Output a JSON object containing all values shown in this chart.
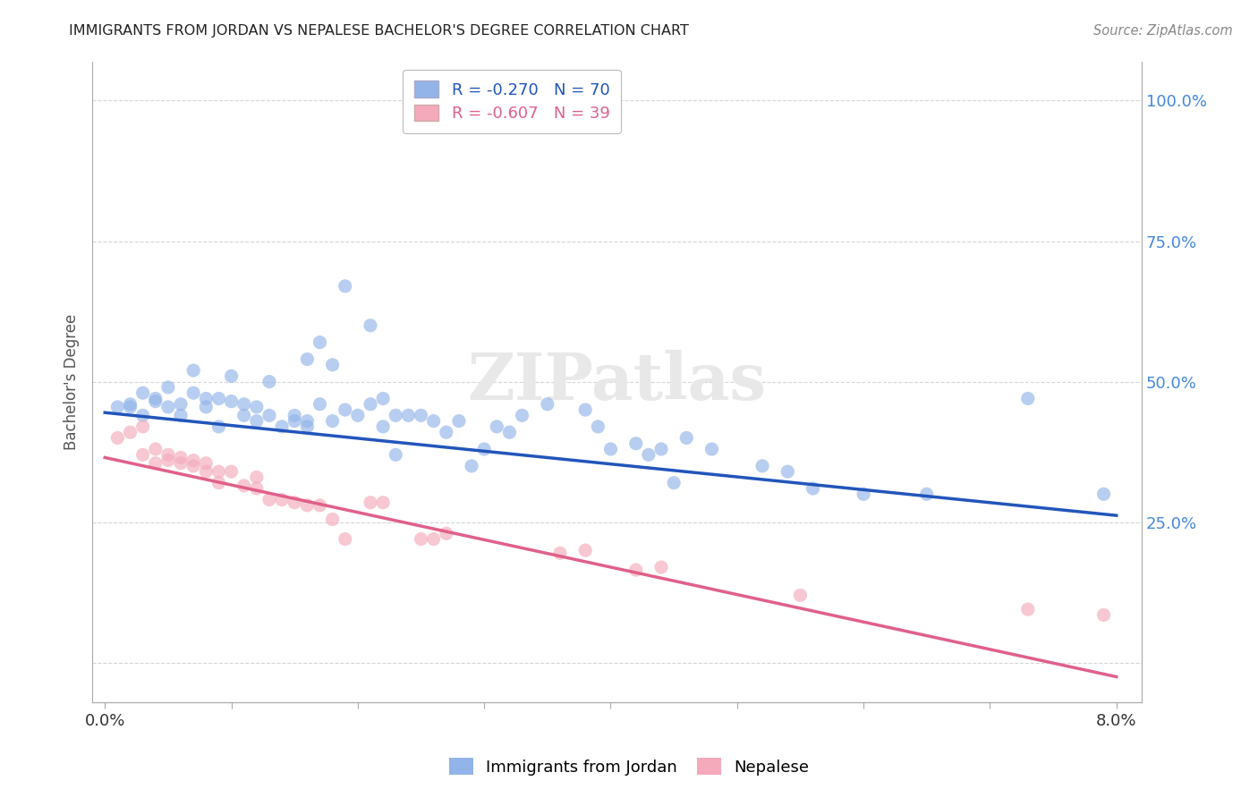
{
  "title": "IMMIGRANTS FROM JORDAN VS NEPALESE BACHELOR'S DEGREE CORRELATION CHART",
  "source": "Source: ZipAtlas.com",
  "ylabel": "Bachelor's Degree",
  "legend_blue": "R = -0.270   N = 70",
  "legend_pink": "R = -0.607   N = 39",
  "legend_label_blue": "Immigrants from Jordan",
  "legend_label_pink": "Nepalese",
  "blue_color": "#92B4E8",
  "pink_color": "#F4AABB",
  "trendline_blue": "#2255BB",
  "trendline_pink": "#E0608A",
  "blue_scatter": [
    [
      0.001,
      0.455
    ],
    [
      0.002,
      0.455
    ],
    [
      0.002,
      0.46
    ],
    [
      0.003,
      0.44
    ],
    [
      0.003,
      0.48
    ],
    [
      0.004,
      0.47
    ],
    [
      0.004,
      0.465
    ],
    [
      0.005,
      0.49
    ],
    [
      0.005,
      0.455
    ],
    [
      0.006,
      0.46
    ],
    [
      0.006,
      0.44
    ],
    [
      0.007,
      0.52
    ],
    [
      0.007,
      0.48
    ],
    [
      0.008,
      0.455
    ],
    [
      0.008,
      0.47
    ],
    [
      0.009,
      0.42
    ],
    [
      0.009,
      0.47
    ],
    [
      0.01,
      0.51
    ],
    [
      0.01,
      0.465
    ],
    [
      0.011,
      0.46
    ],
    [
      0.011,
      0.44
    ],
    [
      0.012,
      0.455
    ],
    [
      0.012,
      0.43
    ],
    [
      0.013,
      0.5
    ],
    [
      0.013,
      0.44
    ],
    [
      0.014,
      0.42
    ],
    [
      0.015,
      0.43
    ],
    [
      0.015,
      0.44
    ],
    [
      0.016,
      0.42
    ],
    [
      0.016,
      0.43
    ],
    [
      0.017,
      0.46
    ],
    [
      0.018,
      0.43
    ],
    [
      0.019,
      0.45
    ],
    [
      0.02,
      0.44
    ],
    [
      0.021,
      0.46
    ],
    [
      0.022,
      0.47
    ],
    [
      0.023,
      0.44
    ],
    [
      0.024,
      0.44
    ],
    [
      0.025,
      0.44
    ],
    [
      0.026,
      0.43
    ],
    [
      0.027,
      0.41
    ],
    [
      0.028,
      0.43
    ],
    [
      0.029,
      0.35
    ],
    [
      0.03,
      0.38
    ],
    [
      0.021,
      0.6
    ],
    [
      0.019,
      0.67
    ],
    [
      0.018,
      0.53
    ],
    [
      0.017,
      0.57
    ],
    [
      0.016,
      0.54
    ],
    [
      0.022,
      0.42
    ],
    [
      0.023,
      0.37
    ],
    [
      0.031,
      0.42
    ],
    [
      0.032,
      0.41
    ],
    [
      0.035,
      0.46
    ],
    [
      0.033,
      0.44
    ],
    [
      0.038,
      0.45
    ],
    [
      0.039,
      0.42
    ],
    [
      0.04,
      0.38
    ],
    [
      0.042,
      0.39
    ],
    [
      0.043,
      0.37
    ],
    [
      0.044,
      0.38
    ],
    [
      0.045,
      0.32
    ],
    [
      0.046,
      0.4
    ],
    [
      0.048,
      0.38
    ],
    [
      0.052,
      0.35
    ],
    [
      0.054,
      0.34
    ],
    [
      0.056,
      0.31
    ],
    [
      0.06,
      0.3
    ],
    [
      0.065,
      0.3
    ],
    [
      0.073,
      0.47
    ],
    [
      0.079,
      0.3
    ]
  ],
  "pink_scatter": [
    [
      0.001,
      0.4
    ],
    [
      0.002,
      0.41
    ],
    [
      0.003,
      0.37
    ],
    [
      0.003,
      0.42
    ],
    [
      0.004,
      0.38
    ],
    [
      0.004,
      0.355
    ],
    [
      0.005,
      0.36
    ],
    [
      0.005,
      0.37
    ],
    [
      0.006,
      0.355
    ],
    [
      0.006,
      0.365
    ],
    [
      0.007,
      0.35
    ],
    [
      0.007,
      0.36
    ],
    [
      0.008,
      0.34
    ],
    [
      0.008,
      0.355
    ],
    [
      0.009,
      0.34
    ],
    [
      0.009,
      0.32
    ],
    [
      0.01,
      0.34
    ],
    [
      0.011,
      0.315
    ],
    [
      0.012,
      0.33
    ],
    [
      0.012,
      0.31
    ],
    [
      0.013,
      0.29
    ],
    [
      0.014,
      0.29
    ],
    [
      0.015,
      0.285
    ],
    [
      0.016,
      0.28
    ],
    [
      0.017,
      0.28
    ],
    [
      0.018,
      0.255
    ],
    [
      0.019,
      0.22
    ],
    [
      0.021,
      0.285
    ],
    [
      0.022,
      0.285
    ],
    [
      0.025,
      0.22
    ],
    [
      0.026,
      0.22
    ],
    [
      0.027,
      0.23
    ],
    [
      0.036,
      0.195
    ],
    [
      0.038,
      0.2
    ],
    [
      0.042,
      0.165
    ],
    [
      0.044,
      0.17
    ],
    [
      0.055,
      0.12
    ],
    [
      0.073,
      0.095
    ],
    [
      0.079,
      0.085
    ]
  ],
  "blue_trend_x": [
    0.0,
    0.08
  ],
  "blue_trend_y": [
    0.445,
    0.262
  ],
  "pink_trend_x": [
    0.0,
    0.08
  ],
  "pink_trend_y": [
    0.365,
    -0.025
  ],
  "xlim": [
    -0.001,
    0.082
  ],
  "ylim": [
    -0.07,
    1.07
  ],
  "ytick_values": [
    0.0,
    0.25,
    0.5,
    0.75,
    1.0
  ],
  "ytick_labels_right": [
    "",
    "25.0%",
    "50.0%",
    "75.0%",
    "100.0%"
  ],
  "xtick_values": [
    0.0,
    0.01,
    0.02,
    0.03,
    0.04,
    0.05,
    0.06,
    0.07,
    0.08
  ],
  "background_color": "#FFFFFF",
  "grid_color": "#CCCCCC",
  "watermark_text": "ZIPatlas",
  "watermark_color": "#E8E8E8"
}
